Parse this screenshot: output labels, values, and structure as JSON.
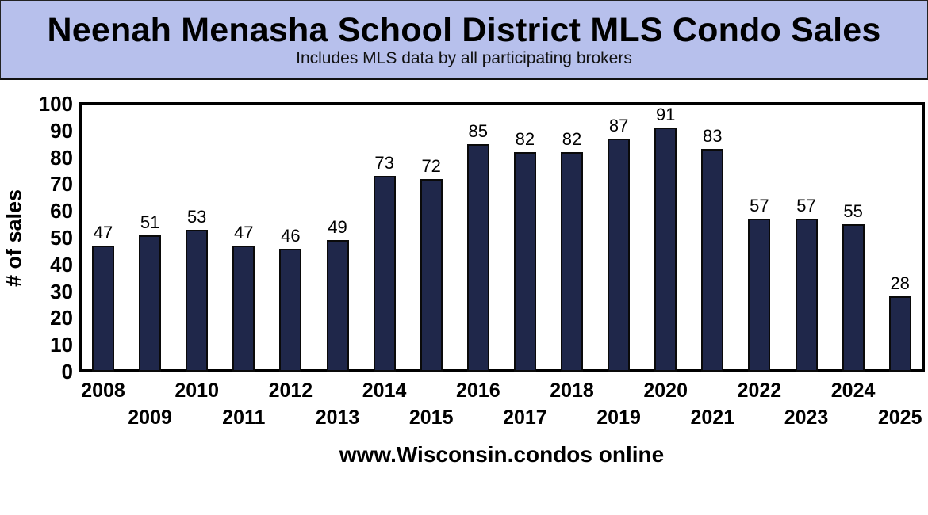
{
  "header": {
    "title": "Neenah Menasha School District MLS Condo Sales",
    "subtitle": "Includes MLS data  by all participating brokers"
  },
  "footer": {
    "source": "www.Wisconsin.condos online"
  },
  "colors": {
    "header_bg": "#b7c0ec",
    "bar_fill": "#1f274a",
    "bar_border": "#0a0a0a"
  },
  "chart_data": {
    "type": "bar",
    "title": "Neenah Menasha School District MLS Condo Sales",
    "subtitle": "Includes MLS data  by all participating brokers",
    "xlabel": "www.Wisconsin.condos online",
    "ylabel": "# of sales",
    "ylim": [
      0,
      100
    ],
    "yticks": [
      0,
      10,
      20,
      30,
      40,
      50,
      60,
      70,
      80,
      90,
      100
    ],
    "grid": false,
    "legend": null,
    "data_labels": true,
    "categories": [
      "2008",
      "2009",
      "2010",
      "2011",
      "2012",
      "2013",
      "2014",
      "2015",
      "2016",
      "2017",
      "2018",
      "2019",
      "2020",
      "2021",
      "2022",
      "2023",
      "2024",
      "2025"
    ],
    "values": [
      47,
      51,
      53,
      47,
      46,
      49,
      73,
      72,
      85,
      82,
      82,
      87,
      91,
      83,
      57,
      57,
      55,
      28
    ]
  }
}
